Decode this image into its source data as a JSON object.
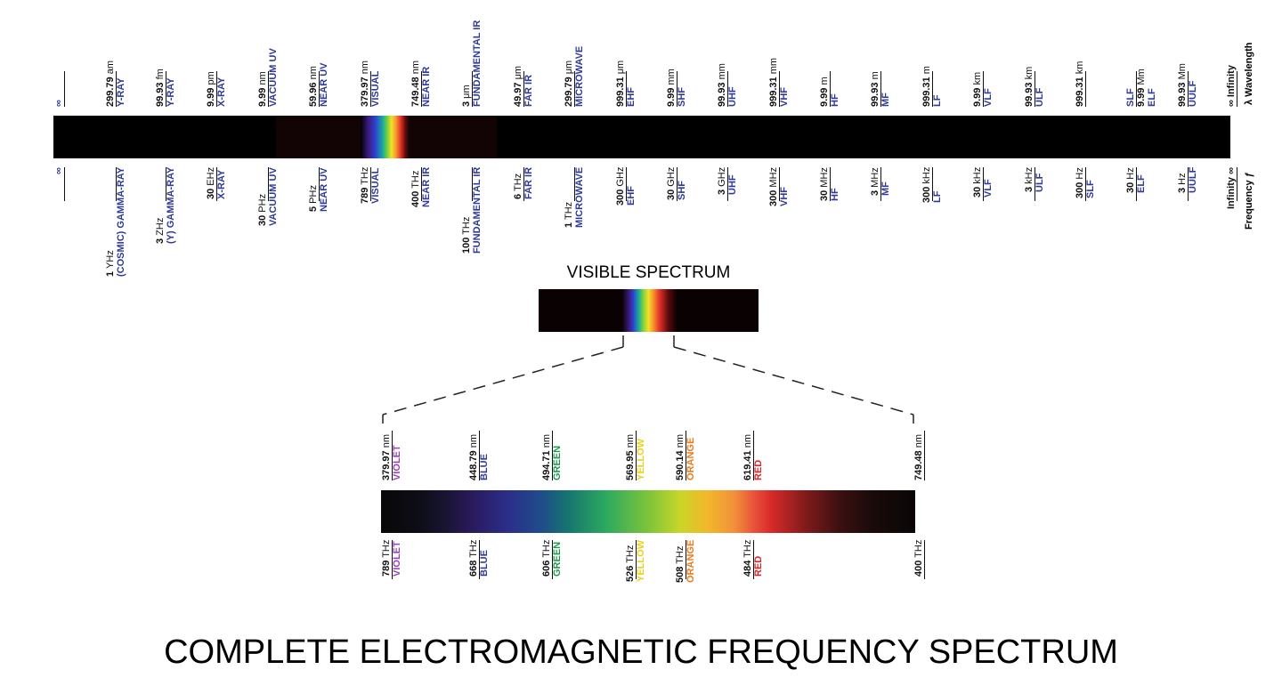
{
  "title": "COMPLETE ELECTROMAGNETIC FREQUENCY SPECTRUM",
  "visible_title": "VISIBLE SPECTRUM",
  "axis_wavelength": "λ Wavelength",
  "axis_frequency": "Frequency ƒ",
  "colors": {
    "category": "#2e3a98",
    "violet": "#9b3fb5",
    "blue": "#2e3a98",
    "green": "#1f9a4a",
    "yellow": "#e8d21a",
    "orange": "#f07a1a",
    "red": "#e0262b"
  },
  "top": [
    {
      "val": "∞",
      "unit": "",
      "cat": ""
    },
    {
      "val": "299.79",
      "unit": "am",
      "cat": "Y-RAY"
    },
    {
      "val": "99.93",
      "unit": "fm",
      "cat": "Y-RAY"
    },
    {
      "val": "9.99",
      "unit": "pm",
      "cat": "X-RAY"
    },
    {
      "val": "9.99",
      "unit": "nm",
      "cat": "VACUUM UV"
    },
    {
      "val": "59.96",
      "unit": "nm",
      "cat": "NEAR UV"
    },
    {
      "val": "379.97",
      "unit": "nm",
      "cat": "VISUAL"
    },
    {
      "val": "749.48",
      "unit": "nm",
      "cat": "NEAR IR"
    },
    {
      "val": "3",
      "unit": "μm",
      "cat": "FUNDAMENTAL IR"
    },
    {
      "val": "49.97",
      "unit": "μm",
      "cat": "FAR IR"
    },
    {
      "val": "299.79",
      "unit": "μm",
      "cat": "MICROWAVE"
    },
    {
      "val": "999.31",
      "unit": "μm",
      "cat": "EHF"
    },
    {
      "val": "9.99",
      "unit": "mm",
      "cat": "SHF"
    },
    {
      "val": "99.93",
      "unit": "mm",
      "cat": "UHF"
    },
    {
      "val": "999.31",
      "unit": "mm",
      "cat": "VHF"
    },
    {
      "val": "9.99",
      "unit": "m",
      "cat": "HF"
    },
    {
      "val": "99.93",
      "unit": "m",
      "cat": "MF"
    },
    {
      "val": "999.31",
      "unit": "m",
      "cat": "LF"
    },
    {
      "val": "9.99",
      "unit": "km",
      "cat": "VLF"
    },
    {
      "val": "99.93",
      "unit": "km",
      "cat": "ULF"
    },
    {
      "val": "999.31",
      "unit": "km",
      "cat": ""
    },
    {
      "val": "9.99",
      "unit": "Mm",
      "cat": "ELF",
      "extra": "SLF"
    },
    {
      "val": "99.93",
      "unit": "Mm",
      "cat": "UULF"
    },
    {
      "val": "∞ Infinity",
      "unit": "",
      "cat": ""
    }
  ],
  "bottom": [
    {
      "val": "∞",
      "unit": "",
      "cat": ""
    },
    {
      "val": "1",
      "unit": "YHz",
      "cat": "(COSMIC) GAMMA-RAY"
    },
    {
      "val": "3",
      "unit": "ZHz",
      "cat": "(Y) GAMMA-RAY"
    },
    {
      "val": "30",
      "unit": "EHz",
      "cat": "X-RAY"
    },
    {
      "val": "30",
      "unit": "PHz",
      "cat": "VACUUM UV"
    },
    {
      "val": "5",
      "unit": "PHz",
      "cat": "NEAR UV"
    },
    {
      "val": "789",
      "unit": "THz",
      "cat": "VISUAL"
    },
    {
      "val": "400",
      "unit": "THz",
      "cat": "NEAR IR"
    },
    {
      "val": "100",
      "unit": "THz",
      "cat": "FUNDAMENTAL IR"
    },
    {
      "val": "6",
      "unit": "THz",
      "cat": "FAR IR"
    },
    {
      "val": "1",
      "unit": "THz",
      "cat": "MICROWAVE"
    },
    {
      "val": "300",
      "unit": "GHz",
      "cat": "EHF"
    },
    {
      "val": "30",
      "unit": "GHz",
      "cat": "SHF"
    },
    {
      "val": "3",
      "unit": "GHz",
      "cat": "UHF"
    },
    {
      "val": "300",
      "unit": "MHz",
      "cat": "VHF"
    },
    {
      "val": "30",
      "unit": "MHz",
      "cat": "HF"
    },
    {
      "val": "3",
      "unit": "MHz",
      "cat": "MF"
    },
    {
      "val": "300",
      "unit": "kHz",
      "cat": "LF"
    },
    {
      "val": "30",
      "unit": "kHz",
      "cat": "VLF"
    },
    {
      "val": "3",
      "unit": "kHz",
      "cat": "ULF"
    },
    {
      "val": "300",
      "unit": "Hz",
      "cat": "SLF"
    },
    {
      "val": "30",
      "unit": "Hz",
      "cat": "ELF"
    },
    {
      "val": "3",
      "unit": "Hz",
      "cat": "UULF"
    },
    {
      "val": "Infinity ∞",
      "unit": "",
      "cat": ""
    }
  ],
  "visible_top": [
    {
      "val": "379.97",
      "unit": "nm",
      "cat": "VIOLET",
      "color": "violet"
    },
    {
      "val": "448.79",
      "unit": "nm",
      "cat": "BLUE",
      "color": "blue"
    },
    {
      "val": "494.71",
      "unit": "nm",
      "cat": "GREEN",
      "color": "green"
    },
    {
      "val": "569.95",
      "unit": "nm",
      "cat": "YELLOW",
      "color": "yellow"
    },
    {
      "val": "590.14",
      "unit": "nm",
      "cat": "ORANGE",
      "color": "orange"
    },
    {
      "val": "619.41",
      "unit": "nm",
      "cat": "RED",
      "color": "red"
    },
    {
      "val": "749.48",
      "unit": "nm",
      "cat": "",
      "color": ""
    }
  ],
  "visible_bottom": [
    {
      "val": "789",
      "unit": "THz",
      "cat": "VIOLET",
      "color": "violet"
    },
    {
      "val": "668",
      "unit": "THz",
      "cat": "BLUE",
      "color": "blue"
    },
    {
      "val": "606",
      "unit": "THz",
      "cat": "GREEN",
      "color": "green"
    },
    {
      "val": "526",
      "unit": "THz",
      "cat": "YELLOW",
      "color": "yellow"
    },
    {
      "val": "508",
      "unit": "THz",
      "cat": "ORANGE",
      "color": "orange"
    },
    {
      "val": "484",
      "unit": "THz",
      "cat": "RED",
      "color": "red"
    },
    {
      "val": "400",
      "unit": "THz",
      "cat": "",
      "color": ""
    }
  ]
}
